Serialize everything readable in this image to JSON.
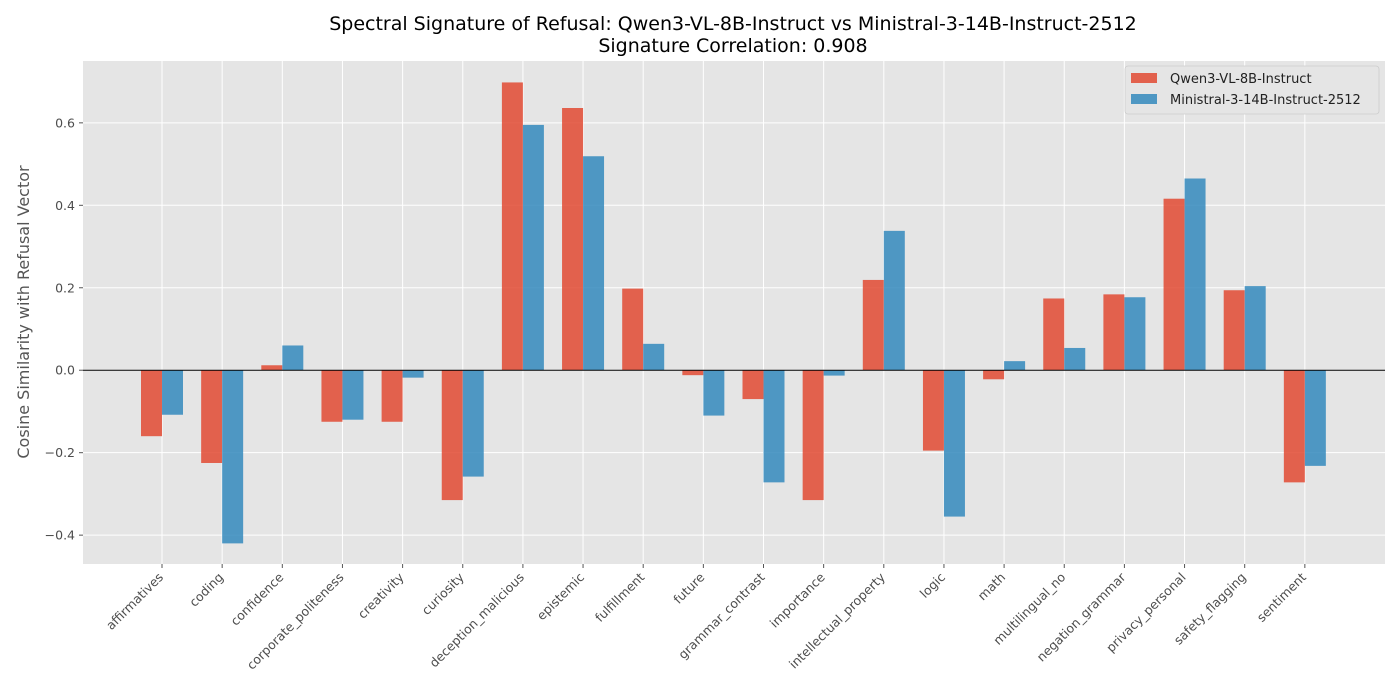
{
  "chart_data": {
    "type": "bar",
    "title": "Spectral Signature of Refusal: Qwen3-VL-8B-Instruct vs Ministral-3-14B-Instruct-2512",
    "subtitle": "Signature Correlation: 0.908",
    "xlabel": "",
    "ylabel": "Cosine Similarity with Refusal Vector",
    "ylim": [
      -0.47,
      0.75
    ],
    "yticks": [
      -0.4,
      -0.2,
      0.0,
      0.2,
      0.4,
      0.6
    ],
    "ytick_labels": [
      "−0.4",
      "−0.2",
      "0.0",
      "0.2",
      "0.4",
      "0.6"
    ],
    "grid": true,
    "legend_position": "top-right",
    "categories": [
      "affirmatives",
      "coding",
      "confidence",
      "corporate_politeness",
      "creativity",
      "curiosity",
      "deception_malicious",
      "epistemic",
      "fulfillment",
      "future",
      "grammar_contrast",
      "importance",
      "intellectual_property",
      "logic",
      "math",
      "multilingual_no",
      "negation_grammar",
      "privacy_personal",
      "safety_flagging",
      "sentiment"
    ],
    "series": [
      {
        "name": "Qwen3-VL-8B-Instruct",
        "color": "#E24A33",
        "values": [
          -0.16,
          -0.225,
          0.012,
          -0.125,
          -0.125,
          -0.315,
          0.698,
          0.636,
          0.198,
          -0.012,
          -0.07,
          -0.315,
          0.219,
          -0.195,
          -0.022,
          0.174,
          0.184,
          0.416,
          0.194,
          -0.272
        ]
      },
      {
        "name": "Ministral-3-14B-Instruct-2512",
        "color": "#348ABD",
        "values": [
          -0.108,
          -0.42,
          0.06,
          -0.12,
          -0.018,
          -0.258,
          0.595,
          0.519,
          0.064,
          -0.11,
          -0.272,
          -0.013,
          0.338,
          -0.355,
          0.022,
          0.054,
          0.177,
          0.465,
          0.204,
          -0.232
        ]
      }
    ]
  }
}
